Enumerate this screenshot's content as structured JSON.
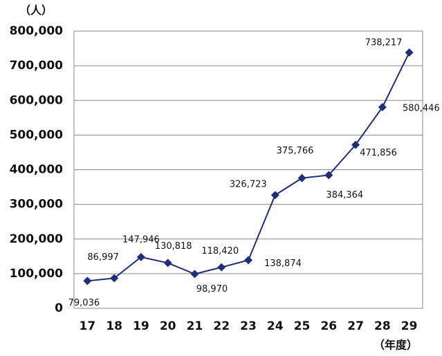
{
  "chart_data": {
    "type": "line",
    "y_unit": "（人）",
    "x_unit": "（年度）",
    "categories": [
      "17",
      "18",
      "19",
      "20",
      "21",
      "22",
      "23",
      "24",
      "25",
      "26",
      "27",
      "28",
      "29"
    ],
    "values": [
      79036,
      86997,
      147946,
      130818,
      98970,
      118420,
      138874,
      326723,
      375766,
      384364,
      471856,
      580446,
      738217
    ],
    "value_labels": [
      "79,036",
      "86,997",
      "147,946",
      "130,818",
      "98,970",
      "118,420",
      "138,874",
      "326,723",
      "375,766",
      "384,364",
      "471,856",
      "580,446",
      "738,217"
    ],
    "color": "#1f2d7a",
    "ylim": [
      0,
      800000
    ],
    "yticks": [
      0,
      {
        "value": 100000,
        "label": "100,000"
      },
      {
        "value": 200000,
        "label": "200,000"
      },
      {
        "value": 300000,
        "label": "300,000"
      },
      {
        "value": 400000,
        "label": "400,000"
      },
      {
        "value": 500000,
        "label": "500,000"
      },
      {
        "value": 600000,
        "label": "600,000"
      },
      {
        "value": 700000,
        "label": "700,000"
      },
      {
        "value": 800000,
        "label": "800,000"
      }
    ],
    "grid": true
  }
}
